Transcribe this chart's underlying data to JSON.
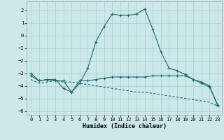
{
  "xlabel": "Humidex (Indice chaleur)",
  "xlim": [
    -0.5,
    23.5
  ],
  "ylim": [
    -6.3,
    2.7
  ],
  "yticks": [
    -6,
    -5,
    -4,
    -3,
    -2,
    -1,
    0,
    1,
    2
  ],
  "xticks": [
    0,
    1,
    2,
    3,
    4,
    5,
    6,
    7,
    8,
    9,
    10,
    11,
    12,
    13,
    14,
    15,
    16,
    17,
    18,
    19,
    20,
    21,
    22,
    23
  ],
  "bg_color": "#cce8e8",
  "grid_color": "#aacccc",
  "line_color": "#1a6b6b",
  "line1_x": [
    0,
    1,
    2,
    3,
    4,
    5,
    6,
    7,
    8,
    9,
    10,
    11,
    12,
    13,
    14,
    15,
    16,
    17,
    18,
    19,
    20,
    21,
    22,
    23
  ],
  "line1_y": [
    -3.0,
    -3.6,
    -3.5,
    -3.5,
    -4.2,
    -4.5,
    -3.8,
    -2.6,
    -0.5,
    0.7,
    1.7,
    1.6,
    1.6,
    1.7,
    2.1,
    0.5,
    -1.3,
    -2.6,
    -2.8,
    -3.1,
    -3.5,
    -3.8,
    -4.1,
    -5.5
  ],
  "line2_x": [
    0,
    1,
    2,
    3,
    4,
    5,
    6,
    7,
    8,
    9,
    10,
    11,
    12,
    13,
    14,
    15,
    16,
    17,
    18,
    19,
    20,
    21,
    22,
    23
  ],
  "line2_y": [
    -3.2,
    -3.6,
    -3.5,
    -3.6,
    -3.6,
    -4.5,
    -3.6,
    -3.6,
    -3.5,
    -3.4,
    -3.3,
    -3.3,
    -3.3,
    -3.3,
    -3.3,
    -3.2,
    -3.2,
    -3.2,
    -3.2,
    -3.2,
    -3.5,
    -3.7,
    -4.0,
    -5.6
  ],
  "line3_x": [
    0,
    1,
    2,
    3,
    4,
    5,
    6,
    7,
    8,
    9,
    10,
    11,
    12,
    13,
    14,
    15,
    16,
    17,
    18,
    19,
    20,
    21,
    22,
    23
  ],
  "line3_y": [
    -3.5,
    -3.8,
    -3.7,
    -3.6,
    -3.7,
    -3.7,
    -3.8,
    -3.9,
    -4.0,
    -4.1,
    -4.2,
    -4.3,
    -4.4,
    -4.5,
    -4.5,
    -4.6,
    -4.7,
    -4.8,
    -4.9,
    -5.0,
    -5.1,
    -5.2,
    -5.3,
    -5.6
  ]
}
